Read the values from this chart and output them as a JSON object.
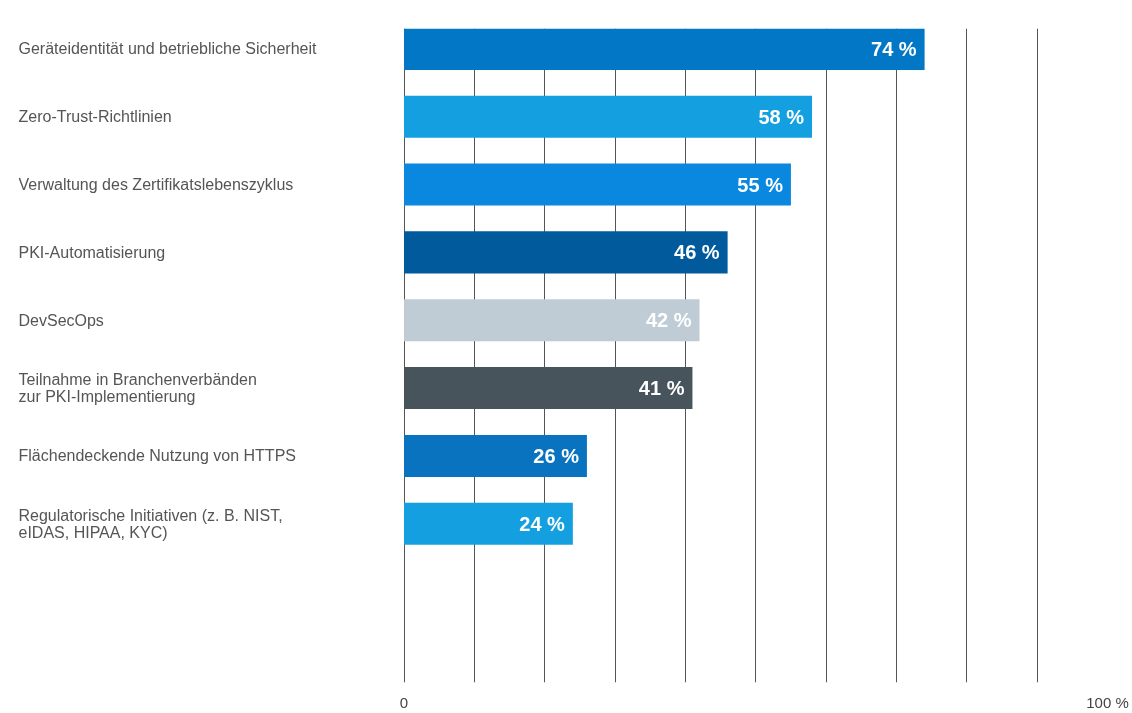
{
  "chart_data": {
    "type": "bar",
    "orientation": "horizontal",
    "categories": [
      "Geräteidentität und betriebliche Sicherheit",
      "Zero-Trust-Richtlinien",
      "Verwaltung des Zertifikatslebenszyklus",
      "PKI-Automatisierung",
      "DevSecOps",
      "Teilnahme in Branchenverbänden\nzur PKI-Implementierung",
      "Flächendeckende Nutzung von HTTPS",
      "Regulatorische Initiativen (z. B. NIST,\neIDAS, HIPAA, KYC)"
    ],
    "values": [
      74,
      58,
      55,
      46,
      42,
      41,
      26,
      24
    ],
    "colors": [
      "#0277c6",
      "#14a0e0",
      "#0a88e0",
      "#005a9c",
      "#bfccd5",
      "#48545c",
      "#0a73c0",
      "#14a0e0"
    ],
    "value_labels": [
      "74 %",
      "58 %",
      "55 %",
      "46 %",
      "42 %",
      "41 %",
      "26 %",
      "24 %"
    ],
    "xlim": [
      0,
      100
    ],
    "xticks": [
      {
        "value": 0,
        "label": "0"
      },
      {
        "value": 10,
        "label": null
      },
      {
        "value": 20,
        "label": null
      },
      {
        "value": 30,
        "label": null
      },
      {
        "value": 40,
        "label": null
      },
      {
        "value": 50,
        "label": null
      },
      {
        "value": 60,
        "label": null
      },
      {
        "value": 70,
        "label": null
      },
      {
        "value": 80,
        "label": null
      },
      {
        "value": 90,
        "label": null
      },
      {
        "value": 100,
        "label": "100 %"
      }
    ],
    "grid": "x"
  }
}
